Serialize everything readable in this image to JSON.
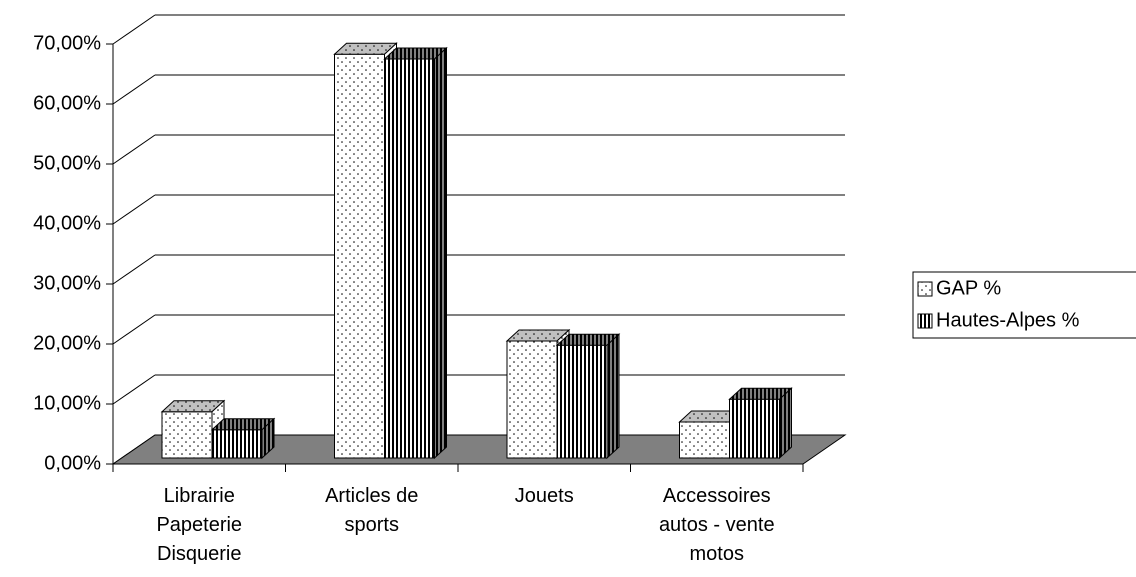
{
  "chart_data": {
    "type": "bar3d",
    "categories": [
      "Librairie Papeterie Disquerie",
      "Articles de sports",
      "Jouets",
      "Accessoires autos - vente motos"
    ],
    "series": [
      {
        "name": "GAP %",
        "color": "#ffffff",
        "values": [
          7.7,
          67.3,
          19.5,
          6.0
        ]
      },
      {
        "name": "Hautes-Alpes %",
        "color": "#ffffff",
        "values": [
          4.7,
          66.5,
          18.8,
          9.8
        ]
      }
    ],
    "ylim": [
      0,
      70
    ],
    "yticks": [
      {
        "value": 0,
        "label": "0,00%"
      },
      {
        "value": 10,
        "label": "10,00%"
      },
      {
        "value": 20,
        "label": "20,00%"
      },
      {
        "value": 30,
        "label": "30,00%"
      },
      {
        "value": 40,
        "label": "40,00%"
      },
      {
        "value": 50,
        "label": "50,00%"
      },
      {
        "value": 60,
        "label": "60,00%"
      },
      {
        "value": 70,
        "label": "70,00%"
      }
    ],
    "grid": true,
    "legend": "right"
  }
}
